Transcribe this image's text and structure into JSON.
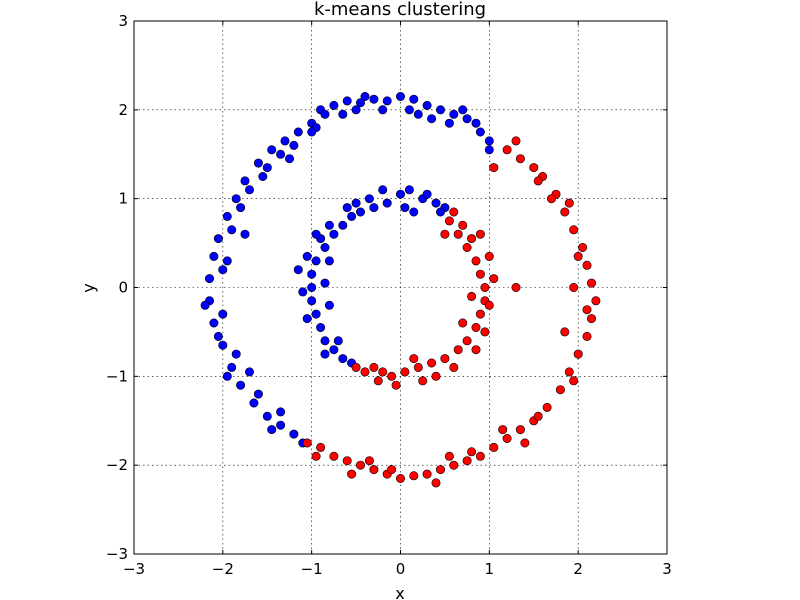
{
  "chart_data": {
    "type": "scatter",
    "title": "k-means clustering",
    "xlabel": "x",
    "ylabel": "y",
    "xlim": [
      -3,
      3
    ],
    "ylim": [
      -3,
      3
    ],
    "xticks": [
      "−3",
      "−2",
      "−1",
      "0",
      "1",
      "2",
      "3"
    ],
    "yticks": [
      "−3",
      "−2",
      "−1",
      "0",
      "1",
      "2",
      "3"
    ],
    "grid": true,
    "colors": {
      "cluster_a": "#0000ff",
      "cluster_b": "#ff0000"
    },
    "series": [
      {
        "color": "#0000ff",
        "points": [
          [
            -0.9,
            2.0
          ],
          [
            -0.75,
            2.05
          ],
          [
            -0.6,
            2.1
          ],
          [
            -0.45,
            2.08
          ],
          [
            -0.3,
            2.12
          ],
          [
            -0.15,
            2.1
          ],
          [
            0.0,
            2.15
          ],
          [
            0.15,
            2.12
          ],
          [
            0.3,
            2.05
          ],
          [
            0.45,
            2.0
          ],
          [
            0.6,
            1.95
          ],
          [
            0.75,
            1.9
          ],
          [
            0.9,
            1.75
          ],
          [
            1.0,
            1.65
          ],
          [
            -1.0,
            1.85
          ],
          [
            -1.15,
            1.75
          ],
          [
            -1.3,
            1.65
          ],
          [
            -1.45,
            1.55
          ],
          [
            -1.6,
            1.4
          ],
          [
            -1.75,
            1.2
          ],
          [
            -1.85,
            1.0
          ],
          [
            -1.95,
            0.8
          ],
          [
            -2.05,
            0.55
          ],
          [
            -2.1,
            0.35
          ],
          [
            -2.15,
            0.1
          ],
          [
            -2.15,
            -0.15
          ],
          [
            -2.1,
            -0.4
          ],
          [
            -2.0,
            -0.65
          ],
          [
            -1.9,
            -0.9
          ],
          [
            -1.8,
            -1.1
          ],
          [
            -1.65,
            -1.3
          ],
          [
            -1.5,
            -1.45
          ],
          [
            -1.35,
            -1.55
          ],
          [
            -1.2,
            -1.65
          ],
          [
            -0.85,
            1.95
          ],
          [
            -0.5,
            2.0
          ],
          [
            -0.2,
            2.0
          ],
          [
            0.2,
            1.95
          ],
          [
            0.55,
            1.85
          ],
          [
            0.85,
            1.85
          ],
          [
            -1.2,
            1.6
          ],
          [
            -1.5,
            1.35
          ],
          [
            -1.7,
            1.1
          ],
          [
            -1.9,
            0.65
          ],
          [
            -2.0,
            0.2
          ],
          [
            -2.0,
            -0.3
          ],
          [
            -1.85,
            -0.75
          ],
          [
            -1.6,
            -1.2
          ],
          [
            -1.35,
            -1.4
          ],
          [
            -0.95,
            1.8
          ],
          [
            -0.4,
            2.15
          ],
          [
            0.1,
            2.0
          ],
          [
            0.7,
            2.0
          ],
          [
            -1.35,
            1.5
          ],
          [
            -1.8,
            0.9
          ],
          [
            -2.2,
            -0.2
          ],
          [
            -1.95,
            -1.0
          ],
          [
            -1.45,
            -1.6
          ],
          [
            -1.1,
            -1.75
          ],
          [
            -1.0,
            1.75
          ],
          [
            -1.25,
            1.45
          ],
          [
            -1.55,
            1.25
          ],
          [
            -1.95,
            0.3
          ],
          [
            -2.05,
            -0.55
          ],
          [
            -1.7,
            -0.95
          ],
          [
            -0.65,
            1.95
          ],
          [
            0.35,
            1.9
          ],
          [
            1.0,
            1.55
          ],
          [
            -1.75,
            0.6
          ],
          [
            -0.3,
            0.9
          ],
          [
            -0.15,
            0.95
          ],
          [
            0.0,
            1.05
          ],
          [
            0.1,
            1.1
          ],
          [
            0.25,
            1.0
          ],
          [
            0.4,
            0.95
          ],
          [
            0.5,
            0.9
          ],
          [
            -0.45,
            0.85
          ],
          [
            -0.55,
            0.8
          ],
          [
            -0.65,
            0.7
          ],
          [
            -0.75,
            0.6
          ],
          [
            -0.85,
            0.45
          ],
          [
            -0.95,
            0.3
          ],
          [
            -1.0,
            0.15
          ],
          [
            -1.0,
            0.0
          ],
          [
            -1.0,
            -0.15
          ],
          [
            -0.95,
            -0.3
          ],
          [
            -0.9,
            -0.45
          ],
          [
            -0.85,
            -0.6
          ],
          [
            -0.75,
            -0.7
          ],
          [
            -0.65,
            -0.8
          ],
          [
            -0.55,
            -0.85
          ],
          [
            -0.2,
            1.1
          ],
          [
            0.05,
            0.9
          ],
          [
            0.3,
            1.05
          ],
          [
            -0.35,
            1.0
          ],
          [
            -0.6,
            0.9
          ],
          [
            -0.8,
            0.7
          ],
          [
            -0.9,
            0.55
          ],
          [
            -1.05,
            0.35
          ],
          [
            -1.1,
            -0.05
          ],
          [
            -1.05,
            -0.35
          ],
          [
            -0.85,
            -0.75
          ],
          [
            -0.7,
            -0.6
          ],
          [
            -0.8,
            0.3
          ],
          [
            -0.85,
            0.05
          ],
          [
            -0.8,
            -0.2
          ],
          [
            -0.95,
            0.6
          ],
          [
            -1.15,
            0.2
          ],
          [
            -0.5,
            0.95
          ],
          [
            0.15,
            0.85
          ],
          [
            0.45,
            0.85
          ]
        ]
      },
      {
        "color": "#ff0000",
        "points": [
          [
            1.2,
            1.55
          ],
          [
            1.35,
            1.45
          ],
          [
            1.5,
            1.35
          ],
          [
            1.6,
            1.25
          ],
          [
            1.75,
            1.05
          ],
          [
            1.85,
            0.85
          ],
          [
            1.95,
            0.65
          ],
          [
            2.05,
            0.45
          ],
          [
            2.1,
            0.25
          ],
          [
            2.15,
            0.05
          ],
          [
            2.2,
            -0.15
          ],
          [
            2.15,
            -0.35
          ],
          [
            2.1,
            -0.55
          ],
          [
            2.0,
            -0.75
          ],
          [
            1.9,
            -0.95
          ],
          [
            1.8,
            -1.15
          ],
          [
            1.65,
            -1.35
          ],
          [
            1.5,
            -1.5
          ],
          [
            1.35,
            -1.6
          ],
          [
            1.2,
            -1.7
          ],
          [
            1.05,
            -1.8
          ],
          [
            0.9,
            -1.9
          ],
          [
            0.75,
            -1.95
          ],
          [
            0.6,
            -2.0
          ],
          [
            0.45,
            -2.05
          ],
          [
            0.3,
            -2.1
          ],
          [
            0.15,
            -2.12
          ],
          [
            0.0,
            -2.15
          ],
          [
            -0.15,
            -2.1
          ],
          [
            -0.3,
            -2.05
          ],
          [
            -0.45,
            -2.0
          ],
          [
            -0.6,
            -1.95
          ],
          [
            -0.75,
            -1.9
          ],
          [
            -0.9,
            -1.8
          ],
          [
            -1.05,
            -1.75
          ],
          [
            1.3,
            1.65
          ],
          [
            1.55,
            1.2
          ],
          [
            1.9,
            0.95
          ],
          [
            2.0,
            0.35
          ],
          [
            2.1,
            -0.25
          ],
          [
            1.95,
            -1.05
          ],
          [
            1.55,
            -1.45
          ],
          [
            1.15,
            -1.6
          ],
          [
            0.8,
            -1.85
          ],
          [
            0.4,
            -2.2
          ],
          [
            -0.1,
            -2.05
          ],
          [
            -0.55,
            -2.1
          ],
          [
            -0.95,
            -1.9
          ],
          [
            1.7,
            1.0
          ],
          [
            1.95,
            0.0
          ],
          [
            1.85,
            -0.5
          ],
          [
            1.4,
            -1.75
          ],
          [
            0.55,
            -1.9
          ],
          [
            -0.35,
            -1.95
          ],
          [
            1.05,
            1.35
          ],
          [
            0.55,
            0.75
          ],
          [
            0.65,
            0.6
          ],
          [
            0.75,
            0.45
          ],
          [
            0.85,
            0.3
          ],
          [
            0.9,
            0.15
          ],
          [
            0.95,
            0.0
          ],
          [
            0.95,
            -0.15
          ],
          [
            0.9,
            -0.3
          ],
          [
            0.85,
            -0.45
          ],
          [
            0.75,
            -0.6
          ],
          [
            0.65,
            -0.7
          ],
          [
            0.5,
            -0.8
          ],
          [
            0.35,
            -0.85
          ],
          [
            0.2,
            -0.9
          ],
          [
            0.05,
            -0.95
          ],
          [
            -0.1,
            -1.0
          ],
          [
            -0.25,
            -1.05
          ],
          [
            -0.4,
            -0.95
          ],
          [
            -0.5,
            -0.9
          ],
          [
            0.7,
            0.7
          ],
          [
            0.8,
            0.55
          ],
          [
            1.0,
            0.35
          ],
          [
            1.05,
            0.1
          ],
          [
            1.0,
            -0.2
          ],
          [
            0.95,
            -0.5
          ],
          [
            0.85,
            -0.7
          ],
          [
            0.6,
            -0.9
          ],
          [
            0.4,
            -1.0
          ],
          [
            0.15,
            -0.8
          ],
          [
            -0.05,
            -1.1
          ],
          [
            -0.3,
            -0.9
          ],
          [
            0.6,
            0.85
          ],
          [
            0.9,
            0.6
          ],
          [
            1.3,
            0.0
          ],
          [
            0.8,
            -0.1
          ],
          [
            0.7,
            -0.4
          ],
          [
            0.25,
            -1.05
          ],
          [
            -0.2,
            -0.95
          ],
          [
            0.5,
            0.6
          ]
        ]
      }
    ]
  }
}
